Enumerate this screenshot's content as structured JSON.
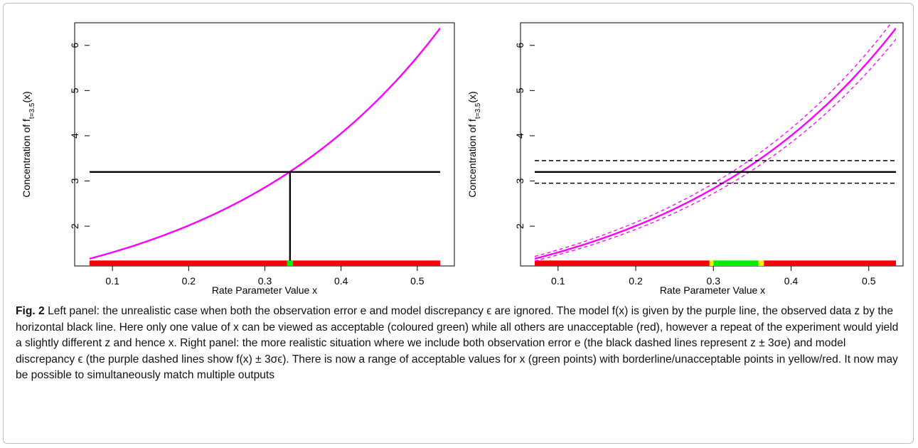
{
  "figure": {
    "caption_label": "Fig. 2",
    "caption_text": "Left panel: the unrealistic case when both the observation error e and model discrepancy ϵ are ignored. The model f(x) is given by the purple line, the observed data z by the horizontal black line. Here only one value of x can be viewed as acceptable (coloured green) while all others are unacceptable (red), however a repeat of the experiment would yield a slightly different z and hence x. Right panel: the more realistic situation where we include both observation error e (the black dashed lines represent z ± 3σe) and model discrepancy ϵ (the purple dashed lines show f(x) ± 3σϵ). There is now a range of acceptable values for x (green points) with borderline/unacceptable points in yellow/red. It now may be possible to simultaneously match multiple outputs"
  },
  "colors": {
    "model": "#ff00ff",
    "observation": "#000000",
    "acceptable": "#00ee00",
    "borderline": "#ffee00",
    "unacceptable": "#ff0000"
  },
  "chart_data": [
    {
      "type": "line",
      "panel": "left",
      "xlabel": "Rate Parameter Value x",
      "ylabel_main": "Concentration of f",
      "ylabel_sub": "t=3.5",
      "ylabel_arg": "(x)",
      "xlim": [
        0.07,
        0.53
      ],
      "ylim": [
        1.12,
        6.5
      ],
      "xticks": [
        0.1,
        0.2,
        0.3,
        0.4,
        0.5
      ],
      "yticks": [
        2,
        3,
        4,
        5,
        6
      ],
      "model_curve": {
        "form": "exponential",
        "x": [
          0.07,
          0.53
        ],
        "y_at_start": 1.28,
        "y_at_end": 6.38
      },
      "observation_z": 3.2,
      "match_x": 0.333,
      "implausibility_bar": {
        "y": 1.17,
        "x_range": [
          0.07,
          0.53
        ],
        "acceptable_x_range": [
          0.329,
          0.337
        ]
      }
    },
    {
      "type": "line",
      "panel": "right",
      "xlabel": "Rate Parameter Value x",
      "ylabel_main": "Concentration of f",
      "ylabel_sub": "t=3.5",
      "ylabel_arg": "(x)",
      "xlim": [
        0.07,
        0.535
      ],
      "ylim": [
        1.12,
        6.5
      ],
      "xticks": [
        0.1,
        0.2,
        0.3,
        0.4,
        0.5
      ],
      "yticks": [
        2,
        3,
        4,
        5,
        6
      ],
      "model_curve": {
        "form": "exponential",
        "x": [
          0.07,
          0.535
        ],
        "y_at_start": 1.28,
        "y_at_end": 6.38
      },
      "model_band_factor": [
        0.962,
        1.04
      ],
      "observation_z": 3.2,
      "observation_band": [
        2.95,
        3.45
      ],
      "implausibility_bar": {
        "y": 1.17,
        "x_range": [
          0.07,
          0.535
        ],
        "segments": [
          {
            "from": 0.07,
            "to": 0.295,
            "class": "unacceptable"
          },
          {
            "from": 0.295,
            "to": 0.3,
            "class": "borderline"
          },
          {
            "from": 0.3,
            "to": 0.305,
            "class": "acceptable"
          },
          {
            "from": 0.305,
            "to": 0.358,
            "class": "acceptable"
          },
          {
            "from": 0.358,
            "to": 0.365,
            "class": "borderline"
          },
          {
            "from": 0.365,
            "to": 0.535,
            "class": "unacceptable"
          }
        ]
      }
    }
  ]
}
